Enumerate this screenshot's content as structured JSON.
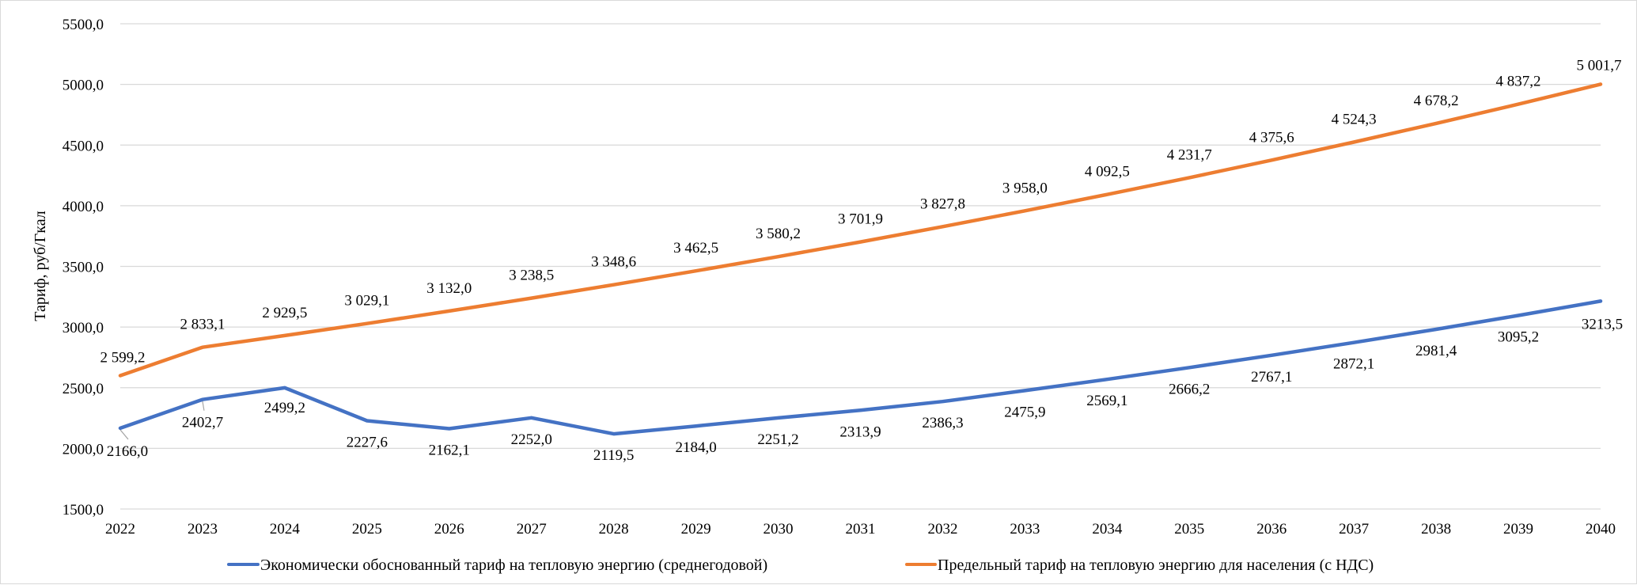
{
  "chart_data": {
    "type": "line",
    "title": "",
    "xlabel": "",
    "ylabel": "Тариф, руб/Гкал",
    "ylim": [
      1500,
      5500
    ],
    "yticks": [
      1500,
      2000,
      2500,
      3000,
      3500,
      4000,
      4500,
      5000,
      5500
    ],
    "ytick_labels": [
      "1500,0",
      "2000,0",
      "2500,0",
      "3000,0",
      "3500,0",
      "4000,0",
      "4500,0",
      "5000,0",
      "5500,0"
    ],
    "grid": true,
    "legend_position": "bottom",
    "categories": [
      "2022",
      "2023",
      "2024",
      "2025",
      "2026",
      "2027",
      "2028",
      "2029",
      "2030",
      "2031",
      "2032",
      "2033",
      "2034",
      "2035",
      "2036",
      "2037",
      "2038",
      "2039",
      "2040"
    ],
    "series": [
      {
        "name": "Экономически обоснованный тариф на тепловую энергию (среднегодовой)",
        "color": "#4472c4",
        "values": [
          2166.0,
          2402.7,
          2499.2,
          2227.6,
          2162.1,
          2252.0,
          2119.5,
          2184.0,
          2251.2,
          2313.9,
          2386.3,
          2475.9,
          2569.1,
          2666.2,
          2767.1,
          2872.1,
          2981.4,
          3095.2,
          3213.5
        ],
        "labels": [
          "2166,0",
          "2402,7",
          "2499,2",
          "2227,6",
          "2162,1",
          "2252,0",
          "2119,5",
          "2184,0",
          "2251,2",
          "2313,9",
          "2386,3",
          "2475,9",
          "2569,1",
          "2666,2",
          "2767,1",
          "2872,1",
          "2981,4",
          "3095,2",
          "3213,5"
        ]
      },
      {
        "name": "Предельный тариф на тепловую энергию для населения (с НДС)",
        "color": "#ed7d31",
        "values": [
          2599.2,
          2833.1,
          2929.5,
          3029.1,
          3132.0,
          3238.5,
          3348.6,
          3462.5,
          3580.2,
          3701.9,
          3827.8,
          3958.0,
          4092.5,
          4231.7,
          4375.6,
          4524.3,
          4678.2,
          4837.2,
          5001.7
        ],
        "labels": [
          "2 599,2",
          "2 833,1",
          "2 929,5",
          "3 029,1",
          "3 132,0",
          "3 238,5",
          "3 348,6",
          "3 462,5",
          "3 580,2",
          "3 701,9",
          "3 827,8",
          "3 958,0",
          "4 092,5",
          "4 231,7",
          "4 375,6",
          "4 524,3",
          "4 678,2",
          "4 837,2",
          "5 001,7"
        ]
      }
    ]
  }
}
